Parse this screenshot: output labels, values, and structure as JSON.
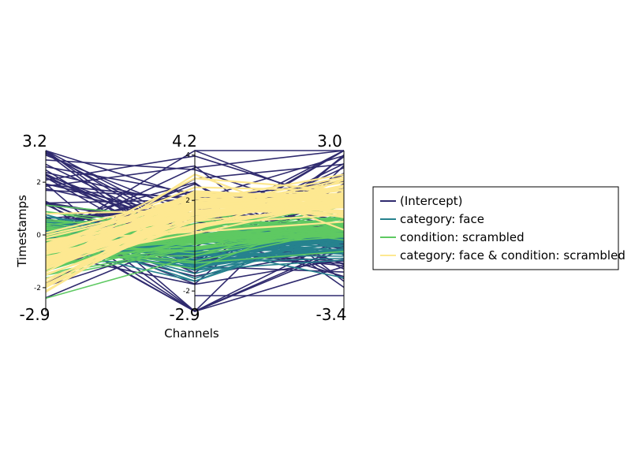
{
  "chart_data": {
    "type": "line",
    "subtype": "parallel-coordinates",
    "xlabel": "Channels",
    "ylabel": "Timestamps",
    "axes": [
      {
        "max_label": "3.2",
        "min_label": "-2.9",
        "max": 3.2,
        "min": -2.9,
        "inner_ticks": [
          {
            "label": "2",
            "value": 2
          },
          {
            "label": "0",
            "value": 0
          },
          {
            "label": "-2",
            "value": -2
          }
        ]
      },
      {
        "max_label": "4.2",
        "min_label": "-2.9",
        "max": 4.2,
        "min": -2.9,
        "inner_ticks": [
          {
            "label": "4",
            "value": 4
          },
          {
            "label": "2",
            "value": 2
          },
          {
            "label": "-2",
            "value": -2
          }
        ]
      },
      {
        "max_label": "3.0",
        "min_label": "-3.4",
        "max": 3.0,
        "min": -3.4,
        "inner_ticks": []
      }
    ],
    "series": [
      {
        "name": "(Intercept)",
        "color": "#2f2a6e",
        "summary": {
          "axis1_mean": 0.8,
          "axis1_sd": 1.6,
          "axis2_mean": 0.6,
          "axis2_sd": 1.9,
          "axis3_mean": 0.4,
          "axis3_sd": 1.6
        }
      },
      {
        "name": "category: face",
        "color": "#26828e",
        "summary": {
          "axis1_mean": 0.0,
          "axis1_sd": 0.45,
          "axis2_mean": -0.3,
          "axis2_sd": 0.55,
          "axis3_mean": -0.5,
          "axis3_sd": 0.45
        }
      },
      {
        "name": "condition: scrambled",
        "color": "#5ec962",
        "summary": {
          "axis1_mean": -0.2,
          "axis1_sd": 0.65,
          "axis2_mean": 0.3,
          "axis2_sd": 0.5,
          "axis3_mean": 0.0,
          "axis3_sd": 0.35
        }
      },
      {
        "name": "category: face & condition: scrambled",
        "color": "#fde891",
        "summary": {
          "axis1_mean": -1.0,
          "axis1_sd": 0.55,
          "axis2_mean": 1.8,
          "axis2_sd": 0.6,
          "axis3_mean": 1.0,
          "axis3_sd": 0.45
        }
      }
    ],
    "lines_per_series": 64,
    "legend_position": "right",
    "grid": false
  }
}
